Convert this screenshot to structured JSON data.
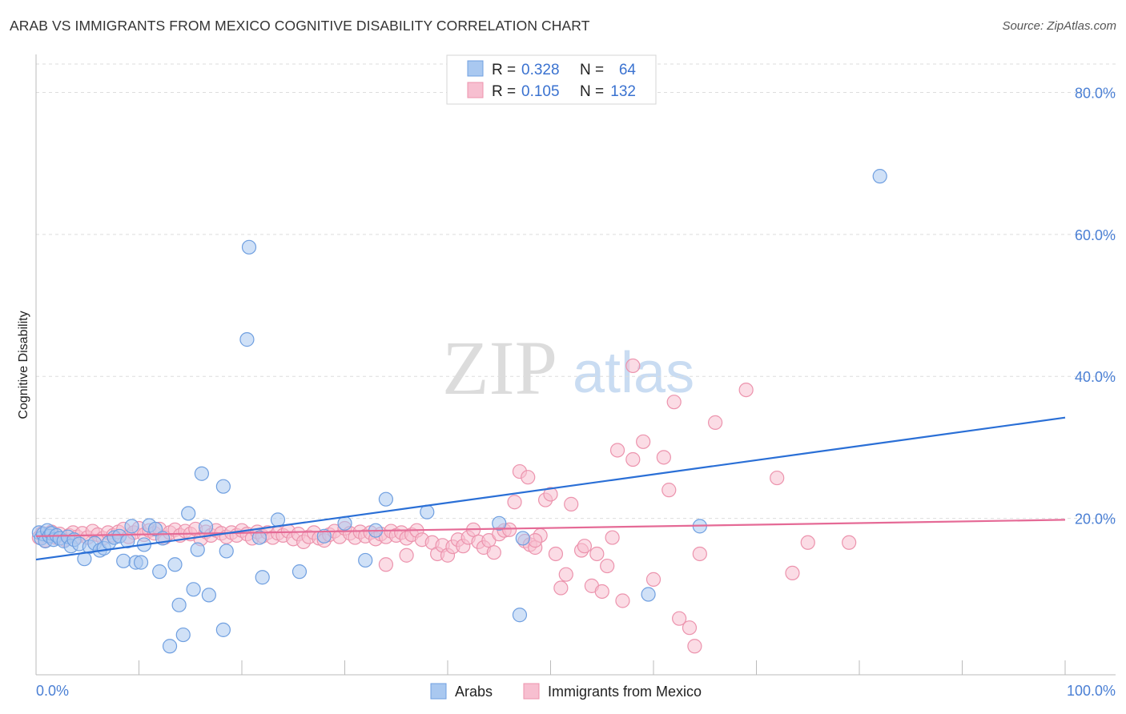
{
  "title": "ARAB VS IMMIGRANTS FROM MEXICO COGNITIVE DISABILITY CORRELATION CHART",
  "source": "Source: ZipAtlas.com",
  "watermark": {
    "zip": "ZIP",
    "atlas": "atlas"
  },
  "legend_top": {
    "rows": [
      {
        "r_label": "R =",
        "r_value": "0.328",
        "n_label": "N =",
        "n_value": "64"
      },
      {
        "r_label": "R =",
        "r_value": "0.105",
        "n_label": "N =",
        "n_value": "132"
      }
    ]
  },
  "legend_bottom": {
    "arabs": "Arabs",
    "mexico": "Immigrants from Mexico"
  },
  "colors": {
    "arabs_fill": "#a9c8f0",
    "arabs_stroke": "#6f9fe0",
    "arabs_line": "#2a6fd6",
    "mexico_fill": "#f7bfd0",
    "mexico_stroke": "#ec93ad",
    "mexico_line": "#e56a96",
    "tick_text": "#4a7fd4"
  },
  "chart_data": {
    "type": "scatter",
    "title": "ARAB VS IMMIGRANTS FROM MEXICO COGNITIVE DISABILITY CORRELATION CHART",
    "xlabel": "",
    "ylabel": "Cognitive Disability",
    "xlim": [
      0,
      100
    ],
    "ylim": [
      0,
      84
    ],
    "x_ticks": [
      "0.0%",
      "100.0%"
    ],
    "y_ticks": [
      {
        "value": 20,
        "label": "20.0%"
      },
      {
        "value": 40,
        "label": "40.0%"
      },
      {
        "value": 60,
        "label": "60.0%"
      },
      {
        "value": 80,
        "label": "80.0%"
      }
    ],
    "grid": true,
    "series": [
      {
        "name": "Arabs",
        "r": 0.328,
        "n": 64,
        "trend": {
          "x": [
            0,
            100
          ],
          "y": [
            14.2,
            34.2
          ]
        },
        "points": [
          [
            0.3,
            18.0
          ],
          [
            0.5,
            17.2
          ],
          [
            0.7,
            17.8
          ],
          [
            0.9,
            16.8
          ],
          [
            1.1,
            18.3
          ],
          [
            1.3,
            17.5
          ],
          [
            1.5,
            17.9
          ],
          [
            1.7,
            17.0
          ],
          [
            2.0,
            17.6
          ],
          [
            2.3,
            17.2
          ],
          [
            2.7,
            16.8
          ],
          [
            3.1,
            17.4
          ],
          [
            3.4,
            16.1
          ],
          [
            3.7,
            17.0
          ],
          [
            4.2,
            16.4
          ],
          [
            4.7,
            14.3
          ],
          [
            5.2,
            16.0
          ],
          [
            5.7,
            16.5
          ],
          [
            6.2,
            15.5
          ],
          [
            6.6,
            15.8
          ],
          [
            7.1,
            16.6
          ],
          [
            7.6,
            17.3
          ],
          [
            8.1,
            17.5
          ],
          [
            8.5,
            14.0
          ],
          [
            8.9,
            16.8
          ],
          [
            9.3,
            18.9
          ],
          [
            9.7,
            13.8
          ],
          [
            10.2,
            13.8
          ],
          [
            10.5,
            16.3
          ],
          [
            11.0,
            19.0
          ],
          [
            11.6,
            18.5
          ],
          [
            12.0,
            12.5
          ],
          [
            12.3,
            17.2
          ],
          [
            13.5,
            13.5
          ],
          [
            13.9,
            7.8
          ],
          [
            14.3,
            3.6
          ],
          [
            15.3,
            10.0
          ],
          [
            15.7,
            15.6
          ],
          [
            16.5,
            18.8
          ],
          [
            16.8,
            9.2
          ],
          [
            18.2,
            24.5
          ],
          [
            18.5,
            15.4
          ],
          [
            18.2,
            4.3
          ],
          [
            14.8,
            20.7
          ],
          [
            16.1,
            26.3
          ],
          [
            20.5,
            45.2
          ],
          [
            20.7,
            58.2
          ],
          [
            21.7,
            17.3
          ],
          [
            22.0,
            11.7
          ],
          [
            23.5,
            19.8
          ],
          [
            25.6,
            12.5
          ],
          [
            28.0,
            17.5
          ],
          [
            30.0,
            19.3
          ],
          [
            32.0,
            14.1
          ],
          [
            33.0,
            18.3
          ],
          [
            34.0,
            22.7
          ],
          [
            38.0,
            20.9
          ],
          [
            45.0,
            19.3
          ],
          [
            47.0,
            6.4
          ],
          [
            47.3,
            17.2
          ],
          [
            59.5,
            9.3
          ],
          [
            64.5,
            18.9
          ],
          [
            82.0,
            68.2
          ],
          [
            13.0,
            2.0
          ]
        ]
      },
      {
        "name": "Immigrants from Mexico",
        "r": 0.105,
        "n": 132,
        "trend": {
          "x": [
            0,
            100
          ],
          "y": [
            17.5,
            19.8
          ]
        },
        "points": [
          [
            0.3,
            17.3
          ],
          [
            0.6,
            17.9
          ],
          [
            0.9,
            16.9
          ],
          [
            1.2,
            17.6
          ],
          [
            1.5,
            18.1
          ],
          [
            1.9,
            17.3
          ],
          [
            2.3,
            17.8
          ],
          [
            2.8,
            17.0
          ],
          [
            3.2,
            17.6
          ],
          [
            3.6,
            18.0
          ],
          [
            4.0,
            17.4
          ],
          [
            4.5,
            17.9
          ],
          [
            5.0,
            17.3
          ],
          [
            5.5,
            18.2
          ],
          [
            6.0,
            17.7
          ],
          [
            6.5,
            17.2
          ],
          [
            7.0,
            18.0
          ],
          [
            7.5,
            17.6
          ],
          [
            8.0,
            18.1
          ],
          [
            8.5,
            18.5
          ],
          [
            9.0,
            17.4
          ],
          [
            9.5,
            18.0
          ],
          [
            10.0,
            18.6
          ],
          [
            10.5,
            17.7
          ],
          [
            11.0,
            18.3
          ],
          [
            11.5,
            17.9
          ],
          [
            12.0,
            18.5
          ],
          [
            12.5,
            17.3
          ],
          [
            13.0,
            18.0
          ],
          [
            13.5,
            18.4
          ],
          [
            14.0,
            17.6
          ],
          [
            14.5,
            18.2
          ],
          [
            15.0,
            17.8
          ],
          [
            15.5,
            18.5
          ],
          [
            16.0,
            17.1
          ],
          [
            16.5,
            18.1
          ],
          [
            17.0,
            17.6
          ],
          [
            17.5,
            18.3
          ],
          [
            18.0,
            17.9
          ],
          [
            18.5,
            17.4
          ],
          [
            19.0,
            18.0
          ],
          [
            19.5,
            17.6
          ],
          [
            20.0,
            18.3
          ],
          [
            20.5,
            17.8
          ],
          [
            21.0,
            17.2
          ],
          [
            21.5,
            18.1
          ],
          [
            22.0,
            17.5
          ],
          [
            22.5,
            18.0
          ],
          [
            23.0,
            17.3
          ],
          [
            23.5,
            17.9
          ],
          [
            24.0,
            17.6
          ],
          [
            24.5,
            18.2
          ],
          [
            25.0,
            17.1
          ],
          [
            25.5,
            17.8
          ],
          [
            26.0,
            16.7
          ],
          [
            26.5,
            17.4
          ],
          [
            27.0,
            18.0
          ],
          [
            27.5,
            17.2
          ],
          [
            28.0,
            16.9
          ],
          [
            28.5,
            17.7
          ],
          [
            29.0,
            18.2
          ],
          [
            29.5,
            17.4
          ],
          [
            30.0,
            18.6
          ],
          [
            30.5,
            17.9
          ],
          [
            31.0,
            17.3
          ],
          [
            31.5,
            18.1
          ],
          [
            32.0,
            17.5
          ],
          [
            32.5,
            18.0
          ],
          [
            33.0,
            17.1
          ],
          [
            33.5,
            17.8
          ],
          [
            34.0,
            17.4
          ],
          [
            34.5,
            18.2
          ],
          [
            35.0,
            17.6
          ],
          [
            35.5,
            18.0
          ],
          [
            36.0,
            17.2
          ],
          [
            36.5,
            17.7
          ],
          [
            37.0,
            18.3
          ],
          [
            37.5,
            17.0
          ],
          [
            38.5,
            16.6
          ],
          [
            39.0,
            15.0
          ],
          [
            39.5,
            16.2
          ],
          [
            40.0,
            14.8
          ],
          [
            40.5,
            16.0
          ],
          [
            41.0,
            17.0
          ],
          [
            41.5,
            16.1
          ],
          [
            42.0,
            17.3
          ],
          [
            42.5,
            18.4
          ],
          [
            43.0,
            16.7
          ],
          [
            43.5,
            15.9
          ],
          [
            44.0,
            16.9
          ],
          [
            44.5,
            15.2
          ],
          [
            45.0,
            17.8
          ],
          [
            45.5,
            18.3
          ],
          [
            46.0,
            18.4
          ],
          [
            47.0,
            26.6
          ],
          [
            47.5,
            16.8
          ],
          [
            47.8,
            25.8
          ],
          [
            46.5,
            22.3
          ],
          [
            48.0,
            16.3
          ],
          [
            48.5,
            15.9
          ],
          [
            49.0,
            17.6
          ],
          [
            49.5,
            22.6
          ],
          [
            50.0,
            23.4
          ],
          [
            50.5,
            15.0
          ],
          [
            51.0,
            10.2
          ],
          [
            51.5,
            12.1
          ],
          [
            52.0,
            22.0
          ],
          [
            53.0,
            15.5
          ],
          [
            53.3,
            16.1
          ],
          [
            54.0,
            10.5
          ],
          [
            54.5,
            15.0
          ],
          [
            55.0,
            9.7
          ],
          [
            55.5,
            13.3
          ],
          [
            56.0,
            17.3
          ],
          [
            56.5,
            29.6
          ],
          [
            57.0,
            8.4
          ],
          [
            58.0,
            28.3
          ],
          [
            59.0,
            30.8
          ],
          [
            60.0,
            11.4
          ],
          [
            61.0,
            28.6
          ],
          [
            61.5,
            24.0
          ],
          [
            62.0,
            36.4
          ],
          [
            62.5,
            5.9
          ],
          [
            63.5,
            4.6
          ],
          [
            64.0,
            2.0
          ],
          [
            64.5,
            15.0
          ],
          [
            66.0,
            33.5
          ],
          [
            69.0,
            38.1
          ],
          [
            72.0,
            25.7
          ],
          [
            75.0,
            16.6
          ],
          [
            79.0,
            16.6
          ],
          [
            73.5,
            12.3
          ],
          [
            58.0,
            41.5
          ],
          [
            34.0,
            13.5
          ],
          [
            36.0,
            14.8
          ],
          [
            48.5,
            16.9
          ]
        ]
      }
    ]
  }
}
